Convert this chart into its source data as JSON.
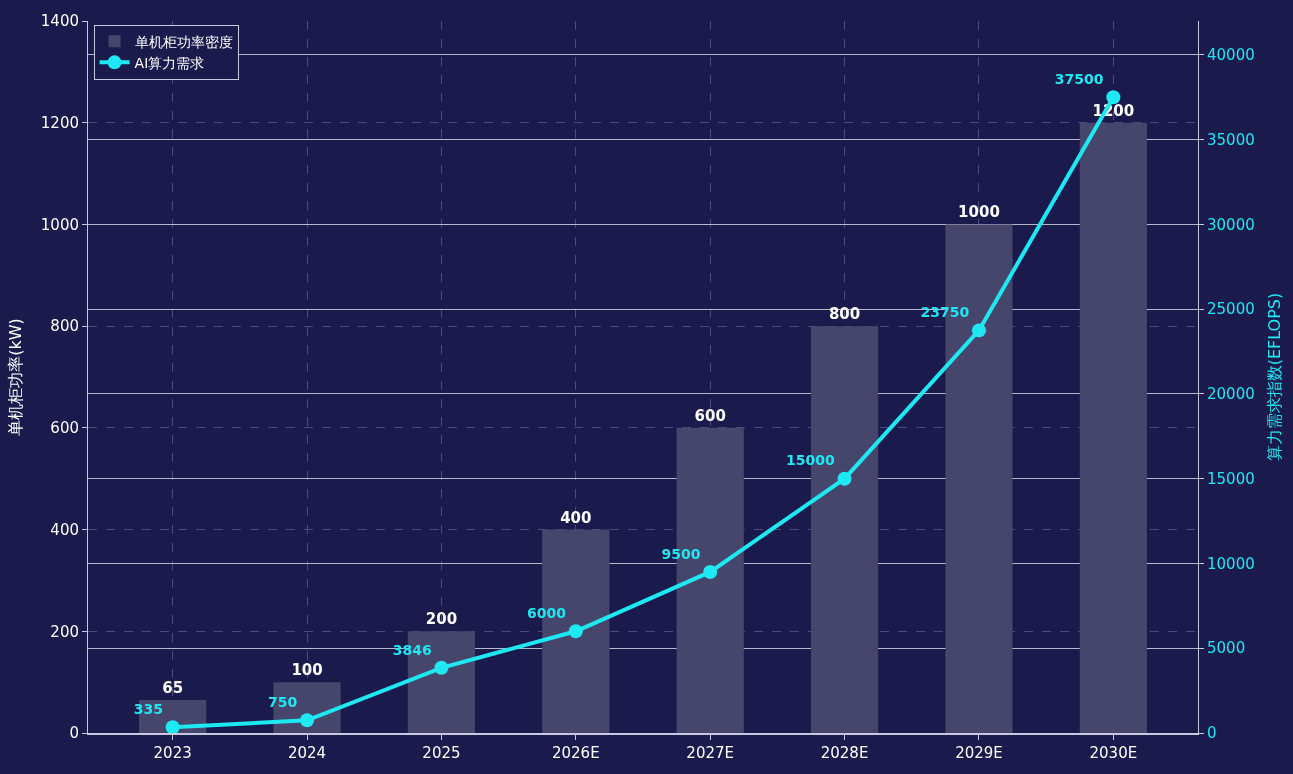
{
  "chart_data": {
    "type": "bar",
    "categories": [
      "2023",
      "2024",
      "2025",
      "2026E",
      "2027E",
      "2028E",
      "2029E",
      "2030E"
    ],
    "series": [
      {
        "name": "单机柜功率密度",
        "color": "#46466c",
        "values": [
          65,
          100,
          200,
          400,
          600,
          800,
          1000,
          1200
        ]
      },
      {
        "name": "AI算力需求",
        "type": "line",
        "axis": "y2",
        "color": "#1ee8f2",
        "marker": "circle",
        "line_style": "solid",
        "values": [
          335,
          750,
          3846,
          6000,
          9500,
          15000,
          23750,
          37500
        ]
      }
    ],
    "ylabel": "单机柜功率(kW)",
    "y2label": "算力需求指数(EFLOPS)",
    "ylim": [
      0,
      1400
    ],
    "yticks": [
      0,
      200,
      400,
      600,
      800,
      1000,
      1200,
      1400
    ],
    "y2lim": [
      0,
      42000
    ],
    "y2ticks": [
      0,
      5000,
      10000,
      15000,
      20000,
      25000,
      30000,
      35000,
      40000
    ],
    "data_labels": true,
    "grid": true,
    "legend": "top left"
  }
}
